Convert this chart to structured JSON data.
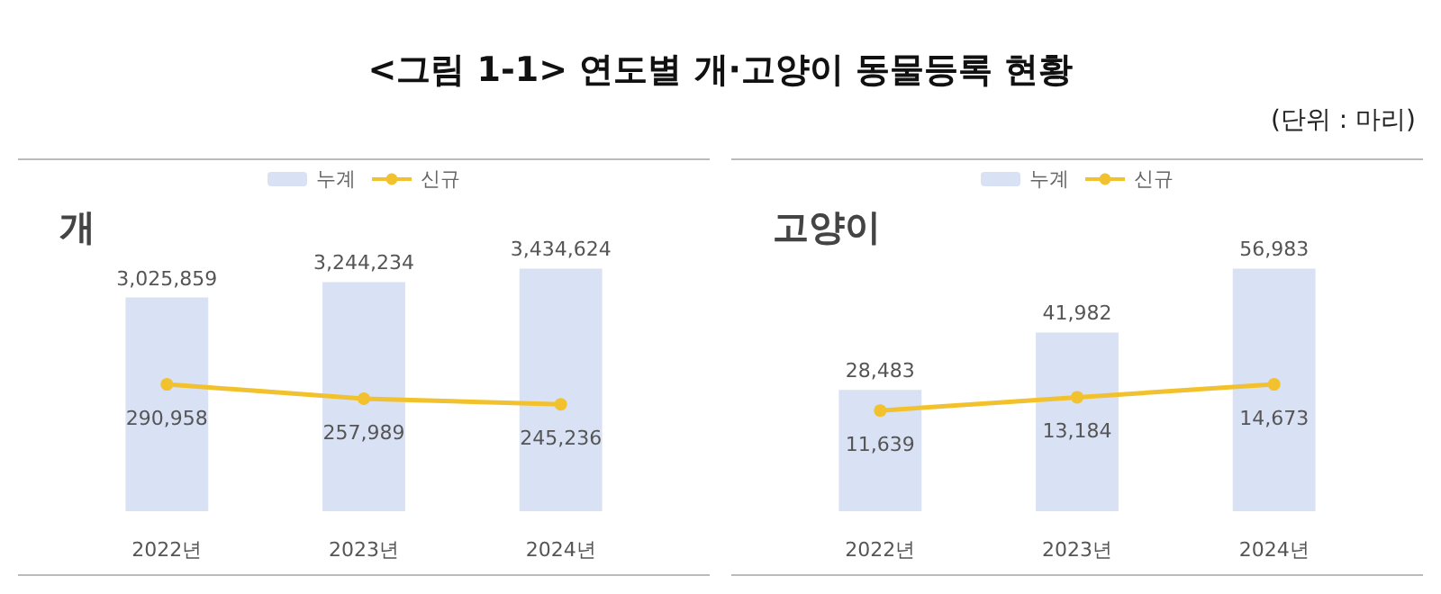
{
  "chart_data": [
    {
      "type": "bar",
      "title": "개",
      "annotations": [
        "<그림 1-1> 연도별 개·고양이 동물등록 현황",
        "(단위 : 마리)"
      ],
      "categories": [
        "2022년",
        "2023년",
        "2024년"
      ],
      "series": [
        {
          "name": "누계",
          "color": "#d9e1f4",
          "values": [
            3025859,
            3244234,
            3434624
          ],
          "value_labels": [
            "3,025,859",
            "3,244,234",
            "3,434,624"
          ]
        },
        {
          "name": "신규",
          "type": "line",
          "axis": "y2",
          "color": "#f2c12e",
          "values": [
            290958,
            257989,
            245236
          ],
          "value_labels": [
            "290,958",
            "257,989",
            "245,236"
          ]
        }
      ],
      "legend": "top",
      "marker": "circle",
      "tick_labels": "x"
    },
    {
      "type": "bar",
      "title": "고양이",
      "categories": [
        "2022년",
        "2023년",
        "2024년"
      ],
      "series": [
        {
          "name": "누계",
          "color": "#d9e1f4",
          "values": [
            28483,
            41982,
            56983
          ],
          "value_labels": [
            "28,483",
            "41,982",
            "56,983"
          ]
        },
        {
          "name": "신규",
          "type": "line",
          "axis": "y2",
          "color": "#f2c12e",
          "values": [
            11639,
            13184,
            14673
          ],
          "value_labels": [
            "11,639",
            "13,184",
            "14,673"
          ]
        }
      ],
      "legend": "top",
      "marker": "circle",
      "tick_labels": "x"
    }
  ]
}
